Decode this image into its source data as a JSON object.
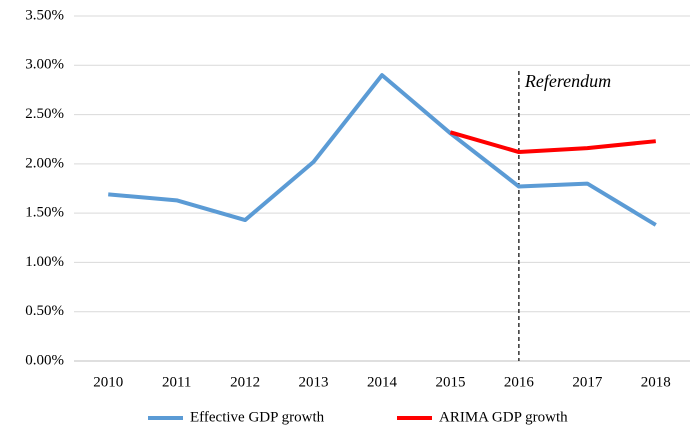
{
  "chart_data": {
    "type": "line",
    "categories": [
      "2010",
      "2011",
      "2012",
      "2013",
      "2014",
      "2015",
      "2016",
      "2017",
      "2018"
    ],
    "series": [
      {
        "name": "Effective GDP growth",
        "color": "#5b9bd5",
        "values": [
          1.69,
          1.63,
          1.43,
          2.02,
          2.9,
          2.31,
          1.77,
          1.8,
          1.38
        ]
      },
      {
        "name": "ARIMA GDP growth",
        "color": "#ff0000",
        "values": [
          null,
          null,
          null,
          null,
          null,
          2.32,
          2.12,
          2.16,
          2.23
        ]
      }
    ],
    "ylim": [
      0,
      3.5
    ],
    "yticks": [
      {
        "value": 0,
        "label": "0.00%"
      },
      {
        "value": 0.5,
        "label": "0.50%"
      },
      {
        "value": 1,
        "label": "1.00%"
      },
      {
        "value": 1.5,
        "label": "1.50%"
      },
      {
        "value": 2,
        "label": "2.00%"
      },
      {
        "value": 2.5,
        "label": "2.50%"
      },
      {
        "value": 3,
        "label": "3.00%"
      },
      {
        "value": 3.5,
        "label": "3.50%"
      }
    ],
    "grid": true,
    "legend": "bottom",
    "annotations": [
      {
        "text": "Referendum",
        "x": "2016"
      }
    ]
  }
}
